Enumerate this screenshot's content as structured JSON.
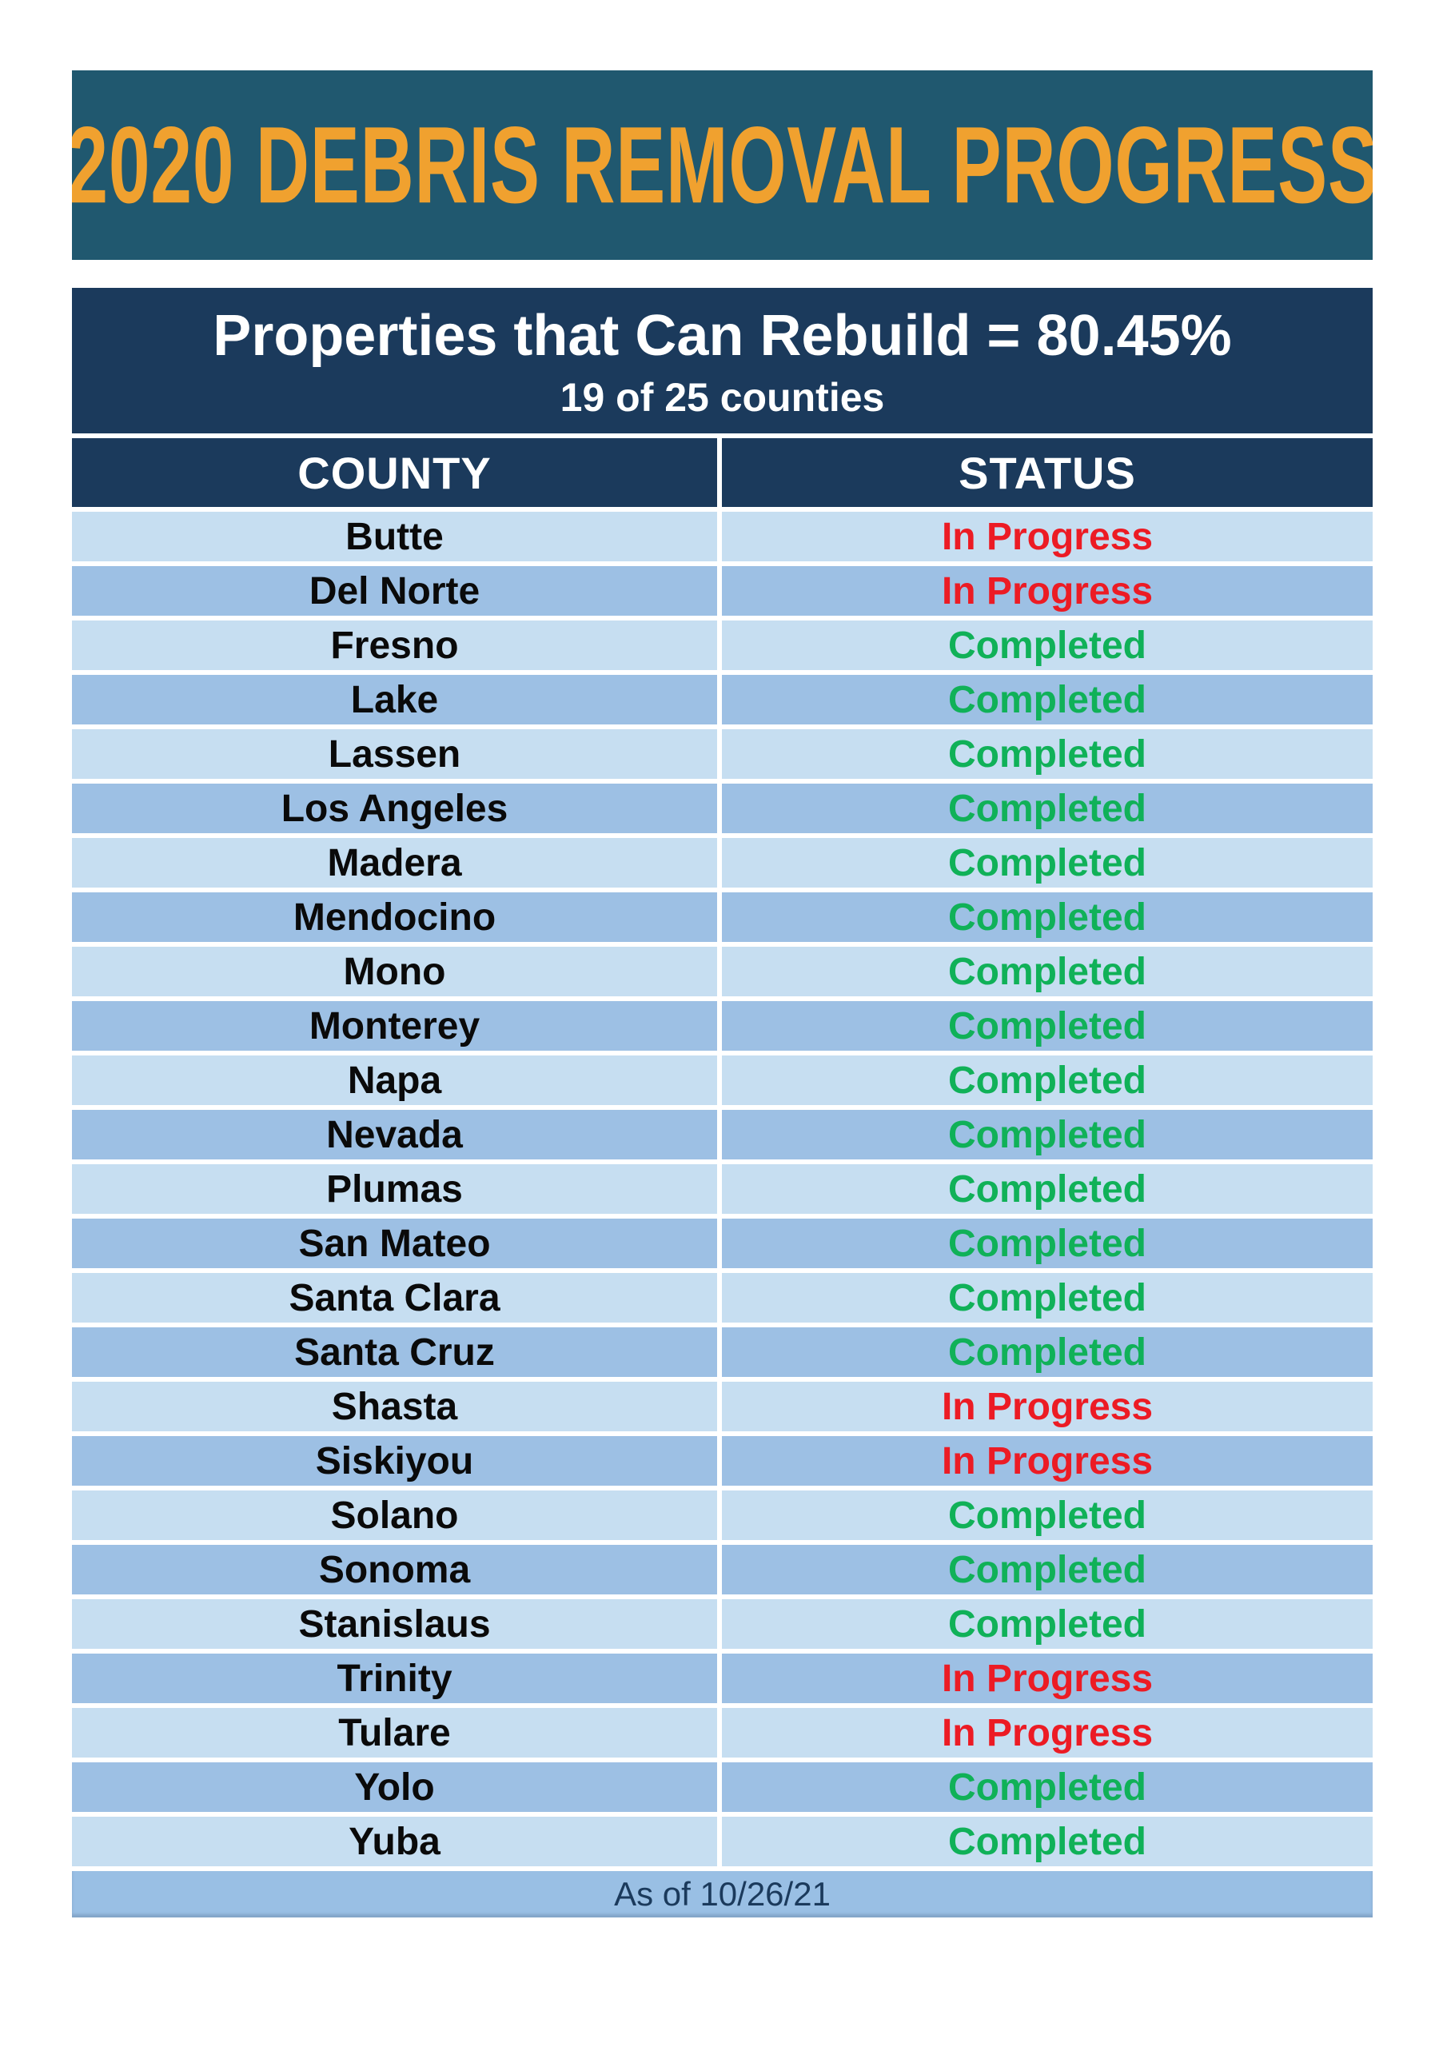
{
  "header": {
    "title": "2020 DEBRIS REMOVAL PROGRESS"
  },
  "summary": {
    "headline": "Properties that Can Rebuild = 80.45%",
    "subline": "19 of 25 counties"
  },
  "table": {
    "columns": [
      "COUNTY",
      "STATUS"
    ],
    "rows": [
      {
        "county": "Butte",
        "status": "In Progress"
      },
      {
        "county": "Del Norte",
        "status": "In Progress"
      },
      {
        "county": "Fresno",
        "status": "Completed"
      },
      {
        "county": "Lake",
        "status": "Completed"
      },
      {
        "county": "Lassen",
        "status": "Completed"
      },
      {
        "county": "Los Angeles",
        "status": "Completed"
      },
      {
        "county": "Madera",
        "status": "Completed"
      },
      {
        "county": "Mendocino",
        "status": "Completed"
      },
      {
        "county": "Mono",
        "status": "Completed"
      },
      {
        "county": "Monterey",
        "status": "Completed"
      },
      {
        "county": "Napa",
        "status": "Completed"
      },
      {
        "county": "Nevada",
        "status": "Completed"
      },
      {
        "county": "Plumas",
        "status": "Completed"
      },
      {
        "county": "San Mateo",
        "status": "Completed"
      },
      {
        "county": "Santa Clara",
        "status": "Completed"
      },
      {
        "county": "Santa Cruz",
        "status": "Completed"
      },
      {
        "county": "Shasta",
        "status": "In Progress"
      },
      {
        "county": "Siskiyou",
        "status": "In Progress"
      },
      {
        "county": "Solano",
        "status": "Completed"
      },
      {
        "county": "Sonoma",
        "status": "Completed"
      },
      {
        "county": "Stanislaus",
        "status": "Completed"
      },
      {
        "county": "Trinity",
        "status": "In Progress"
      },
      {
        "county": "Tulare",
        "status": "In Progress"
      },
      {
        "county": "Yolo",
        "status": "Completed"
      },
      {
        "county": "Yuba",
        "status": "Completed"
      }
    ]
  },
  "footer": {
    "as_of": "As of 10/26/21"
  },
  "colors": {
    "banner_background": "#20586F",
    "banner_title": "#F0A12F",
    "band_navy": "#1B3A5C",
    "row_light": "#C6DEF1",
    "row_dark": "#9DC0E4",
    "footer_band": "#99BFE4",
    "status_in_progress": "#EC1B24",
    "status_completed": "#10B158"
  }
}
